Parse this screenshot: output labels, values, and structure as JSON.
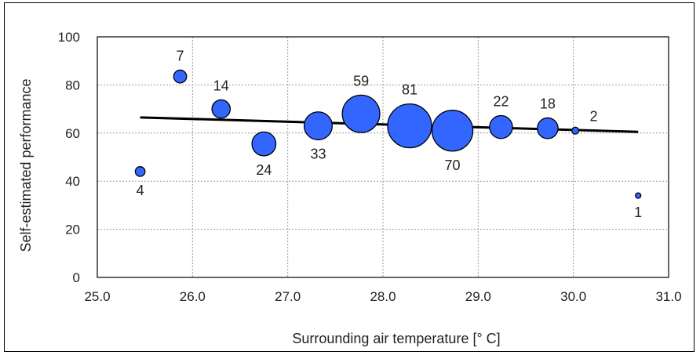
{
  "chart_data": {
    "type": "scatter",
    "subtype": "bubble",
    "xlabel": "Surrounding air temperature [° C]",
    "ylabel": "Self-estimated performance",
    "xlim": [
      25.0,
      31.0
    ],
    "ylim": [
      0,
      100
    ],
    "x_ticks": [
      "25.0",
      "26.0",
      "27.0",
      "28.0",
      "29.0",
      "30.0",
      "31.0"
    ],
    "y_ticks": [
      "0",
      "20",
      "40",
      "60",
      "80",
      "100"
    ],
    "x_tick_values": [
      25.0,
      26.0,
      27.0,
      28.0,
      29.0,
      30.0,
      31.0
    ],
    "y_tick_values": [
      0,
      20,
      40,
      60,
      80,
      100
    ],
    "grid": "dotted",
    "bubble_color": "#3366ff",
    "bubble_edge_color": "#000000",
    "points": [
      {
        "x": 25.45,
        "y": 44,
        "n": 4,
        "label": "4",
        "label_pos": "below"
      },
      {
        "x": 25.87,
        "y": 83.5,
        "n": 7,
        "label": "7",
        "label_pos": "above"
      },
      {
        "x": 26.3,
        "y": 70,
        "n": 14,
        "label": "14",
        "label_pos": "above"
      },
      {
        "x": 26.75,
        "y": 55.5,
        "n": 24,
        "label": "24",
        "label_pos": "below"
      },
      {
        "x": 27.32,
        "y": 63,
        "n": 33,
        "label": "33",
        "label_pos": "below"
      },
      {
        "x": 27.77,
        "y": 68,
        "n": 59,
        "label": "59",
        "label_pos": "above"
      },
      {
        "x": 28.28,
        "y": 63,
        "n": 81,
        "label": "81",
        "label_pos": "above"
      },
      {
        "x": 28.73,
        "y": 61,
        "n": 70,
        "label": "70",
        "label_pos": "below"
      },
      {
        "x": 29.24,
        "y": 62.5,
        "n": 22,
        "label": "22",
        "label_pos": "above"
      },
      {
        "x": 29.73,
        "y": 62,
        "n": 18,
        "label": "18",
        "label_pos": "above"
      },
      {
        "x": 30.02,
        "y": 61,
        "n": 2,
        "label": "2",
        "label_pos": "right"
      },
      {
        "x": 30.68,
        "y": 34,
        "n": 1,
        "label": "1",
        "label_pos": "below"
      }
    ],
    "trendline": {
      "x": [
        25.45,
        30.68
      ],
      "y": [
        66.5,
        60.5
      ],
      "color": "#000000"
    }
  }
}
